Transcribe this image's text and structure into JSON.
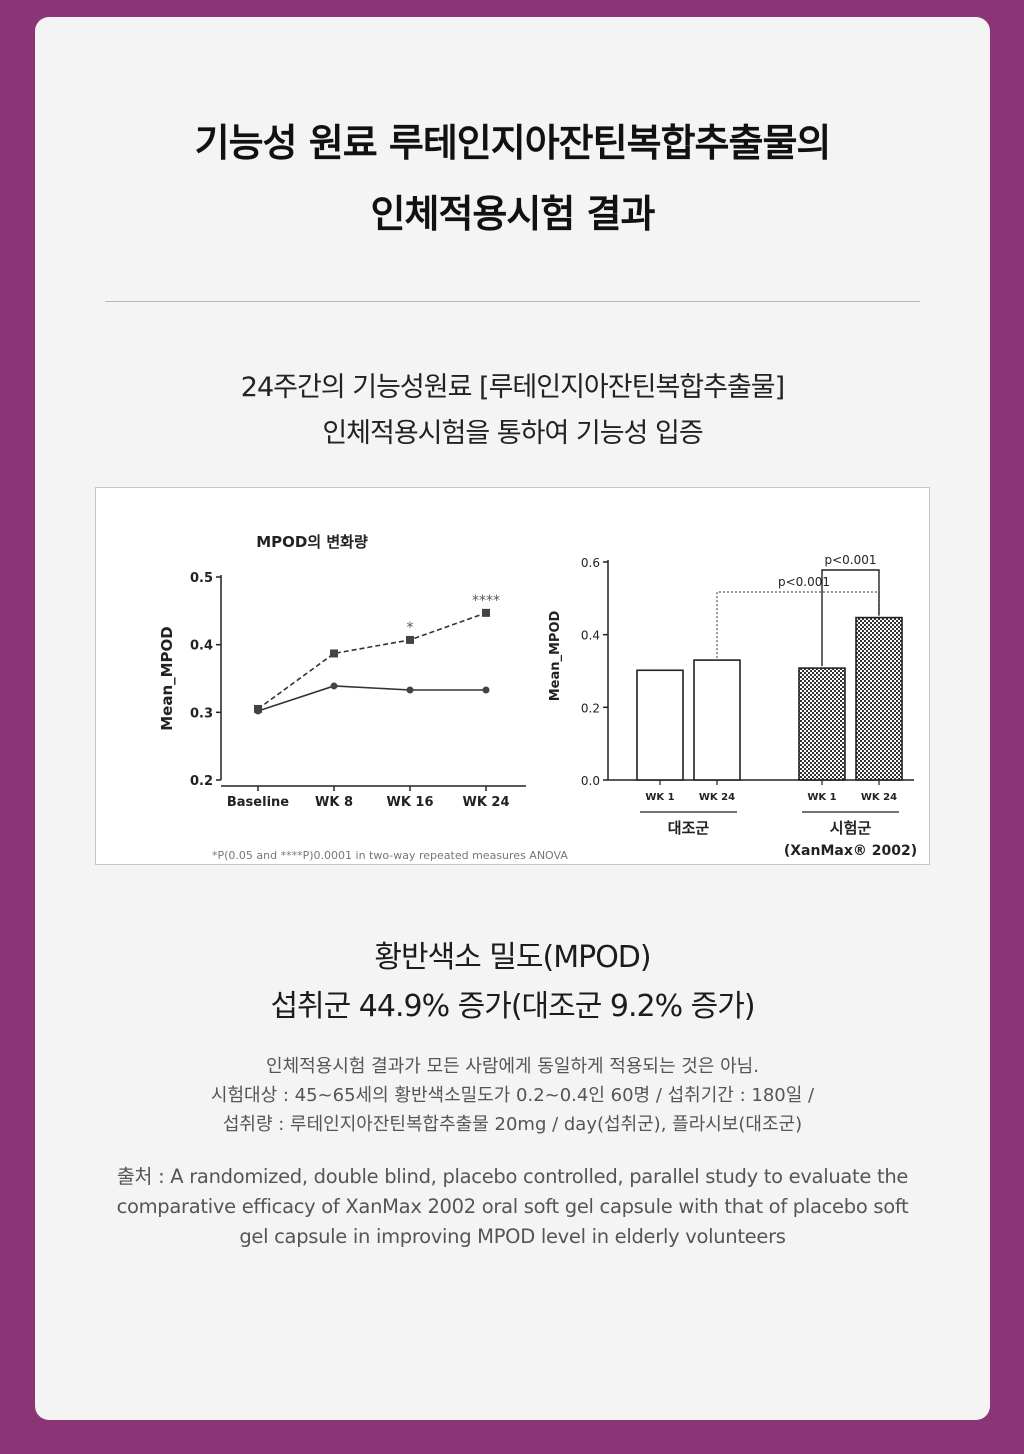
{
  "header": {
    "title_line1": "기능성 원료 루테인지아잔틴복합추출물의",
    "title_line2": "인체적용시험 결과"
  },
  "subtitle": {
    "line1": "24주간의 기능성원료 [루테인지아잔틴복합추출물]",
    "line2": "인체적용시험을 통하여 기능성 입증"
  },
  "chart_data": [
    {
      "type": "line",
      "title": "MPOD의 변화량",
      "ylabel": "Mean_MPOD",
      "ylim": [
        0.2,
        0.5
      ],
      "yticks": [
        "0.2",
        "0.3",
        "0.4",
        "0.5"
      ],
      "categories": [
        "Baseline",
        "WK 8",
        "WK 16",
        "WK 24"
      ],
      "series": [
        {
          "style": "dashed",
          "marker": "square",
          "values": [
            0.305,
            0.387,
            0.407,
            0.447
          ]
        },
        {
          "style": "solid",
          "marker": "circle",
          "values": [
            0.302,
            0.339,
            0.333,
            0.333
          ]
        }
      ],
      "annotations": [
        "*",
        "****"
      ],
      "footnote": "*P(0.05 and ****P)0.0001 in two-way repeated measures ANOVA"
    },
    {
      "type": "bar",
      "ylabel": "Mean_MPOD",
      "ylim": [
        0.0,
        0.6
      ],
      "yticks": [
        "0.0",
        "0.2",
        "0.4",
        "0.6"
      ],
      "groups": [
        {
          "label": "대조군",
          "categories": [
            "WK 1",
            "WK 24"
          ],
          "values": [
            0.302,
            0.33
          ],
          "fill": "#ffffff"
        },
        {
          "label": "시험군",
          "label2": "(XanMax® 2002)",
          "categories": [
            "WK 1",
            "WK 24"
          ],
          "values": [
            0.308,
            0.447
          ],
          "fill": "checker"
        }
      ],
      "annotations": [
        "p<0.001",
        "p<0.001"
      ]
    }
  ],
  "result": {
    "line1": "황반색소 밀도(MPOD)",
    "line2": "섭취군 44.9% 증가(대조군 9.2% 증가)"
  },
  "notes": {
    "line1": "인체적용시험 결과가 모든 사람에게 동일하게 적용되는 것은 아님.",
    "line2": "시험대상 : 45~65세의 황반색소밀도가 0.2~0.4인 60명 / 섭취기간 : 180일 /",
    "line3": "섭취량 : 루테인지아잔틴복합추출물 20mg / day(섭취군), 플라시보(대조군)"
  },
  "source": {
    "line1": "출처 : A randomized, double blind, placebo controlled, parallel study to evaluate the",
    "line2": "comparative efficacy of XanMax 2002 oral soft gel capsule with that of placebo soft",
    "line3": "gel capsule in improving MPOD level in elderly volunteers"
  }
}
